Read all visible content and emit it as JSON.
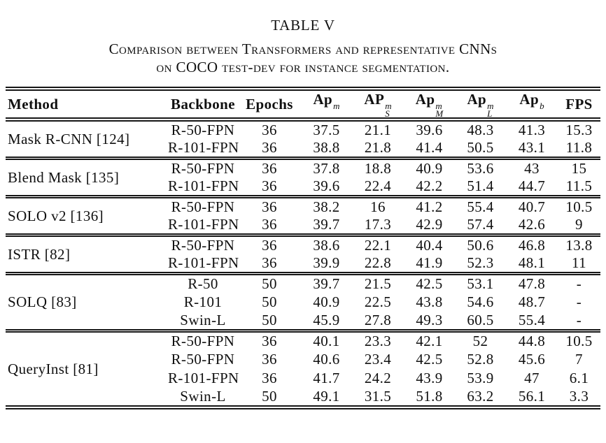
{
  "colors": {
    "background": "#ffffff",
    "text": "#101010",
    "rule": "#161616"
  },
  "title": "TABLE V",
  "caption_line1": "Comparison between Transformers and representative CNNs",
  "caption_line2": "on COCO test-dev for instance segmentation.",
  "table": {
    "headers": [
      {
        "text": "Method"
      },
      {
        "text": "Backbone"
      },
      {
        "text": "Epochs"
      },
      {
        "base": "Ap",
        "sup": "m",
        "sub": ""
      },
      {
        "base": "AP",
        "sup": "m",
        "sub": "S"
      },
      {
        "base": "Ap",
        "sup": "m",
        "sub": "M"
      },
      {
        "base": "Ap",
        "sup": "m",
        "sub": "L"
      },
      {
        "base": "Ap",
        "sup": "b",
        "sub": ""
      },
      {
        "text": "FPS"
      }
    ],
    "groups": [
      {
        "method": "Mask R-CNN [124]",
        "rows": [
          [
            "R-50-FPN",
            "36",
            "37.5",
            "21.1",
            "39.6",
            "48.3",
            "41.3",
            "15.3"
          ],
          [
            "R-101-FPN",
            "36",
            "38.8",
            "21.8",
            "41.4",
            "50.5",
            "43.1",
            "11.8"
          ]
        ]
      },
      {
        "method": "Blend Mask [135]",
        "rows": [
          [
            "R-50-FPN",
            "36",
            "37.8",
            "18.8",
            "40.9",
            "53.6",
            "43",
            "15"
          ],
          [
            "R-101-FPN",
            "36",
            "39.6",
            "22.4",
            "42.2",
            "51.4",
            "44.7",
            "11.5"
          ]
        ]
      },
      {
        "method": "SOLO v2 [136]",
        "rows": [
          [
            "R-50-FPN",
            "36",
            "38.2",
            "16",
            "41.2",
            "55.4",
            "40.7",
            "10.5"
          ],
          [
            "R-101-FPN",
            "36",
            "39.7",
            "17.3",
            "42.9",
            "57.4",
            "42.6",
            "9"
          ]
        ]
      },
      {
        "method": "ISTR [82]",
        "rows": [
          [
            "R-50-FPN",
            "36",
            "38.6",
            "22.1",
            "40.4",
            "50.6",
            "46.8",
            "13.8"
          ],
          [
            "R-101-FPN",
            "36",
            "39.9",
            "22.8",
            "41.9",
            "52.3",
            "48.1",
            "11"
          ]
        ]
      },
      {
        "method": "SOLQ [83]",
        "rows": [
          [
            "R-50",
            "50",
            "39.7",
            "21.5",
            "42.5",
            "53.1",
            "47.8",
            "-"
          ],
          [
            "R-101",
            "50",
            "40.9",
            "22.5",
            "43.8",
            "54.6",
            "48.7",
            "-"
          ],
          [
            "Swin-L",
            "50",
            "45.9",
            "27.8",
            "49.3",
            "60.5",
            "55.4",
            "-"
          ]
        ]
      },
      {
        "method": "QueryInst [81]",
        "rows": [
          [
            "R-50-FPN",
            "36",
            "40.1",
            "23.3",
            "42.1",
            "52",
            "44.8",
            "10.5"
          ],
          [
            "R-50-FPN",
            "36",
            "40.6",
            "23.4",
            "42.5",
            "52.8",
            "45.6",
            "7"
          ],
          [
            "R-101-FPN",
            "36",
            "41.7",
            "24.2",
            "43.9",
            "53.9",
            "47",
            "6.1"
          ],
          [
            "Swin-L",
            "50",
            "49.1",
            "31.5",
            "51.8",
            "63.2",
            "56.1",
            "3.3"
          ]
        ]
      }
    ]
  }
}
